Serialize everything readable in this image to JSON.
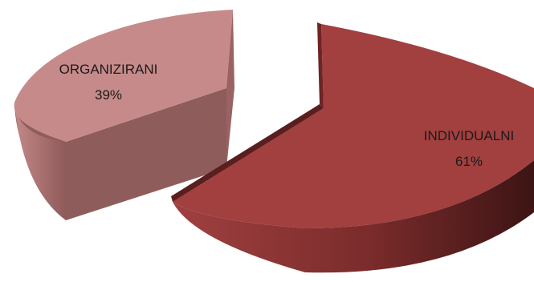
{
  "chart_data": {
    "type": "pie",
    "categories": [
      "ORGANIZIRANI",
      "INDIVIDUALNI"
    ],
    "values": [
      39,
      61
    ],
    "value_labels": [
      "39%",
      "61%"
    ],
    "unit": "%",
    "style": "3d-exploded",
    "legend": "none",
    "colors": {
      "ORGANIZIRANI": "#c78a8a",
      "INDIVIDUALNI": "#a23f3f"
    }
  }
}
